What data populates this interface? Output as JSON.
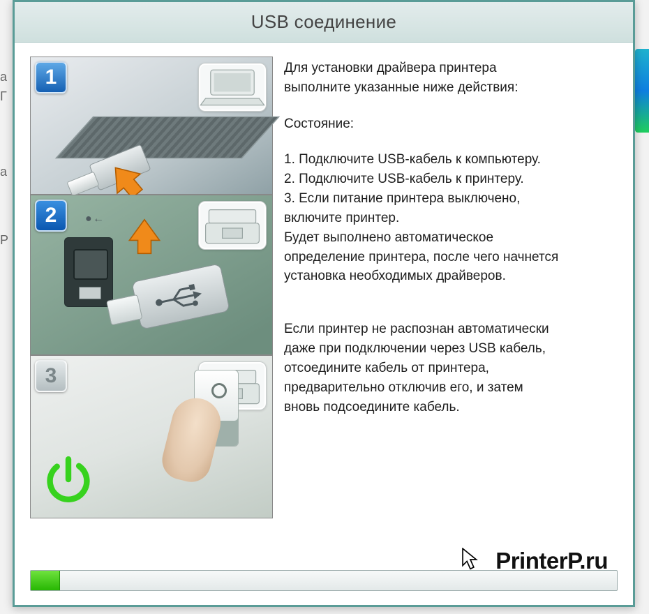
{
  "window": {
    "title": "USB соединение",
    "border_color": "#5a9c97",
    "title_bg_from": "#e3ecec",
    "title_bg_to": "#cfe0de"
  },
  "steps": [
    {
      "n": "1",
      "thumb": "laptop-icon",
      "badge_variant": "badge1"
    },
    {
      "n": "2",
      "thumb": "printer-icon",
      "badge_variant": "badge2"
    },
    {
      "n": "3",
      "thumb": "printer-icon",
      "badge_variant": "badge3"
    }
  ],
  "text": {
    "intro1": "Для установки драйвера принтера",
    "intro2": "выполните указанные ниже действия:",
    "state_label": "Состояние:",
    "s1": "1. Подключите USB-кабель к компьютеру.",
    "s2": "2. Подключите USB-кабель к принтеру.",
    "s3a": "3. Если питание принтера выключено,",
    "s3b": "включите принтер.",
    "auto1": "Будет выполнено автоматическое",
    "auto2": "определение принтера, после чего начнется",
    "auto3": "установка необходимых драйверов.",
    "warn1": "Если принтер не распознан автоматически",
    "warn2": "даже при подключении через USB кабель,",
    "warn3": "отсоедините кабель от принтера,",
    "warn4": "предварительно отключив его, и затем",
    "warn5": "вновь подсоедините кабель."
  },
  "progress": {
    "percent": 5,
    "fill_from": "#6fe23e",
    "fill_to": "#27b703"
  },
  "colors": {
    "arrow": "#f08a1a",
    "power_ring": "#37d21e",
    "text": "#1d1d1d"
  },
  "watermark": "PrinterP.ru",
  "bg_letters": {
    "a": "а",
    "g": "Г",
    "r": "Р"
  }
}
